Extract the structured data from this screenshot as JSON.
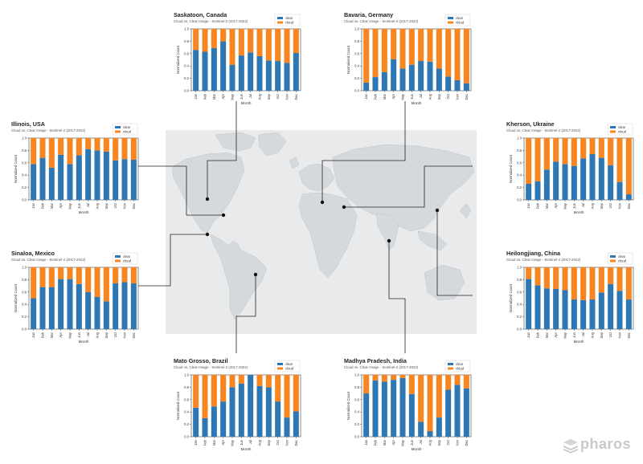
{
  "colors": {
    "clear": "#2c77b4",
    "cloud": "#f98521",
    "map_bg": "#e8eaec",
    "land": "#d6d9dc"
  },
  "brand": {
    "name": "pharos",
    "icon": "stacked-layers-icon"
  },
  "shared": {
    "subtitle": "Cloud vs. Clear Image - Sentinel-2 (2017-2022)",
    "xlabel": "Month",
    "ylabel": "Normalized Count",
    "legend": [
      "clear",
      "cloud"
    ],
    "months": [
      "Jan",
      "Feb",
      "Mar",
      "Apr",
      "May",
      "Jun",
      "Jul",
      "Aug",
      "Sep",
      "Oct",
      "Nov",
      "Dec"
    ],
    "yticks": [
      "0.0",
      "0.2",
      "0.4",
      "0.6",
      "0.8",
      "1.0"
    ]
  },
  "chart_data": [
    {
      "id": "saskatoon",
      "type": "bar",
      "stacked": true,
      "title": "Saskatoon, Canada",
      "categories": [
        "Jan",
        "Feb",
        "Mar",
        "Apr",
        "May",
        "Jun",
        "Jul",
        "Aug",
        "Sep",
        "Oct",
        "Nov",
        "Dec"
      ],
      "series": [
        {
          "name": "clear",
          "values": [
            0.66,
            0.63,
            0.69,
            0.8,
            0.42,
            0.57,
            0.62,
            0.56,
            0.49,
            0.48,
            0.45,
            0.61
          ]
        },
        {
          "name": "cloud",
          "values": [
            0.34,
            0.37,
            0.31,
            0.2,
            0.58,
            0.43,
            0.38,
            0.44,
            0.51,
            0.52,
            0.55,
            0.39
          ]
        }
      ],
      "ylim": [
        0,
        1
      ],
      "legend_position": "top-right"
    },
    {
      "id": "bavaria",
      "type": "bar",
      "stacked": true,
      "title": "Bavaria, Germany",
      "categories": [
        "Jan",
        "Feb",
        "Mar",
        "Apr",
        "May",
        "Jun",
        "Jul",
        "Aug",
        "Sep",
        "Oct",
        "Nov",
        "Dec"
      ],
      "series": [
        {
          "name": "clear",
          "values": [
            0.13,
            0.22,
            0.3,
            0.51,
            0.36,
            0.42,
            0.48,
            0.47,
            0.36,
            0.23,
            0.17,
            0.12
          ]
        },
        {
          "name": "cloud",
          "values": [
            0.87,
            0.78,
            0.7,
            0.49,
            0.64,
            0.58,
            0.52,
            0.53,
            0.64,
            0.77,
            0.83,
            0.88
          ]
        }
      ],
      "ylim": [
        0,
        1
      ],
      "legend_position": "top-right"
    },
    {
      "id": "illinois",
      "type": "bar",
      "stacked": true,
      "title": "Illinois, USA",
      "categories": [
        "Jan",
        "Feb",
        "Mar",
        "Apr",
        "May",
        "Jun",
        "Jul",
        "Aug",
        "Sep",
        "Oct",
        "Nov",
        "Dec"
      ],
      "series": [
        {
          "name": "clear",
          "values": [
            0.58,
            0.68,
            0.52,
            0.73,
            0.58,
            0.72,
            0.82,
            0.8,
            0.78,
            0.64,
            0.66,
            0.65
          ]
        },
        {
          "name": "cloud",
          "values": [
            0.42,
            0.32,
            0.48,
            0.27,
            0.42,
            0.28,
            0.18,
            0.2,
            0.22,
            0.36,
            0.34,
            0.35
          ]
        }
      ],
      "ylim": [
        0,
        1
      ],
      "legend_position": "top-right"
    },
    {
      "id": "kherson",
      "type": "bar",
      "stacked": true,
      "title": "Kherson, Ukraine",
      "categories": [
        "Jan",
        "Feb",
        "Mar",
        "Apr",
        "May",
        "Jun",
        "Jul",
        "Aug",
        "Sep",
        "Oct",
        "Nov",
        "Dec"
      ],
      "series": [
        {
          "name": "clear",
          "values": [
            0.26,
            0.3,
            0.49,
            0.62,
            0.58,
            0.55,
            0.67,
            0.74,
            0.68,
            0.56,
            0.29,
            0.09
          ]
        },
        {
          "name": "cloud",
          "values": [
            0.74,
            0.7,
            0.51,
            0.38,
            0.42,
            0.45,
            0.33,
            0.26,
            0.32,
            0.44,
            0.71,
            0.91
          ]
        }
      ],
      "ylim": [
        0,
        1
      ],
      "legend_position": "top-right"
    },
    {
      "id": "sinaloa",
      "type": "bar",
      "stacked": true,
      "title": "Sinaloa, Mexico",
      "categories": [
        "Jan",
        "Feb",
        "Mar",
        "Apr",
        "May",
        "Jun",
        "Jul",
        "Aug",
        "Sep",
        "Oct",
        "Nov",
        "Dec"
      ],
      "series": [
        {
          "name": "clear",
          "values": [
            0.5,
            0.68,
            0.68,
            0.81,
            0.81,
            0.73,
            0.6,
            0.52,
            0.45,
            0.74,
            0.76,
            0.74
          ]
        },
        {
          "name": "cloud",
          "values": [
            0.5,
            0.32,
            0.32,
            0.19,
            0.19,
            0.27,
            0.4,
            0.48,
            0.55,
            0.26,
            0.24,
            0.26
          ]
        }
      ],
      "ylim": [
        0,
        1
      ],
      "legend_position": "top-right"
    },
    {
      "id": "heilongjiang",
      "type": "bar",
      "stacked": true,
      "title": "Heilongjiang, China",
      "categories": [
        "Jan",
        "Feb",
        "Mar",
        "Apr",
        "May",
        "Jun",
        "Jul",
        "Aug",
        "Sep",
        "Oct",
        "Nov",
        "Dec"
      ],
      "series": [
        {
          "name": "clear",
          "values": [
            0.81,
            0.71,
            0.66,
            0.65,
            0.63,
            0.48,
            0.47,
            0.48,
            0.59,
            0.73,
            0.62,
            0.48
          ]
        },
        {
          "name": "cloud",
          "values": [
            0.19,
            0.29,
            0.34,
            0.35,
            0.37,
            0.52,
            0.53,
            0.52,
            0.41,
            0.27,
            0.38,
            0.52
          ]
        }
      ],
      "ylim": [
        0,
        1
      ],
      "legend_position": "top-right"
    },
    {
      "id": "matogrosso",
      "type": "bar",
      "stacked": true,
      "title": "Mato Grosso, Brazil",
      "categories": [
        "Jan",
        "Feb",
        "Mar",
        "Apr",
        "May",
        "Jun",
        "Jul",
        "Aug",
        "Sep",
        "Oct",
        "Nov",
        "Dec"
      ],
      "series": [
        {
          "name": "clear",
          "values": [
            0.47,
            0.3,
            0.49,
            0.57,
            0.8,
            0.86,
            1.0,
            0.82,
            0.8,
            0.57,
            0.31,
            0.41
          ]
        },
        {
          "name": "cloud",
          "values": [
            0.53,
            0.7,
            0.51,
            0.43,
            0.2,
            0.14,
            0.0,
            0.18,
            0.2,
            0.43,
            0.69,
            0.59
          ]
        }
      ],
      "ylim": [
        0,
        1
      ],
      "legend_position": "top-right"
    },
    {
      "id": "madhya",
      "type": "bar",
      "stacked": true,
      "title": "Madhya Pradesh, India",
      "categories": [
        "Jan",
        "Feb",
        "Mar",
        "Apr",
        "May",
        "Jun",
        "Jul",
        "Aug",
        "Sep",
        "Oct",
        "Nov",
        "Dec"
      ],
      "series": [
        {
          "name": "clear",
          "values": [
            0.7,
            0.91,
            0.89,
            0.92,
            0.95,
            0.69,
            0.24,
            0.09,
            0.31,
            0.76,
            0.84,
            0.78
          ]
        },
        {
          "name": "cloud",
          "values": [
            0.3,
            0.09,
            0.11,
            0.08,
            0.05,
            0.31,
            0.76,
            0.91,
            0.69,
            0.24,
            0.16,
            0.22
          ]
        }
      ],
      "ylim": [
        0,
        1
      ],
      "legend_position": "top-right"
    }
  ]
}
